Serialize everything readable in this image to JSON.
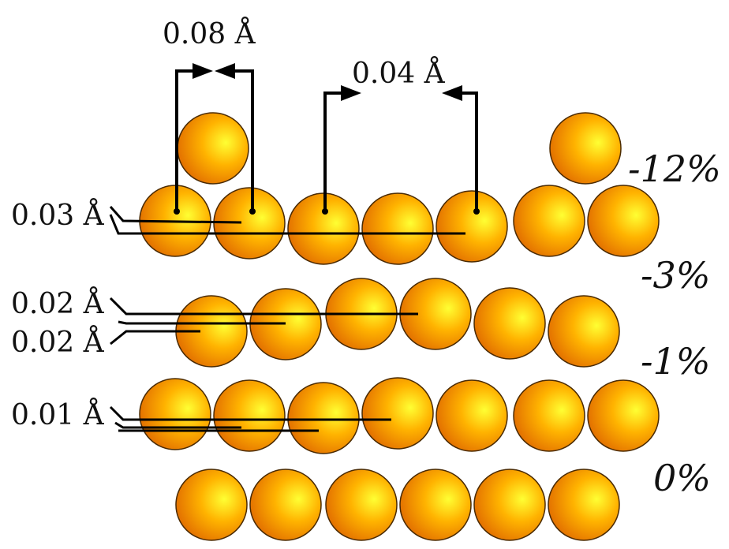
{
  "diagram": {
    "top_label_left": "0.08 Å",
    "top_label_right": "0.04 Å",
    "side_labels": {
      "row1": "0.03 Å",
      "row2a": "0.02 Å",
      "row2b": "0.02 Å",
      "row3": "0.01 Å"
    },
    "percentages": {
      "p1": "-12%",
      "p2": "-3%",
      "p3": "-1%",
      "p4": "0%"
    },
    "colors": {
      "atom_center": "#ffff33",
      "atom_mid": "#ffb300",
      "atom_edge": "#e06a00",
      "line": "#000000"
    }
  }
}
